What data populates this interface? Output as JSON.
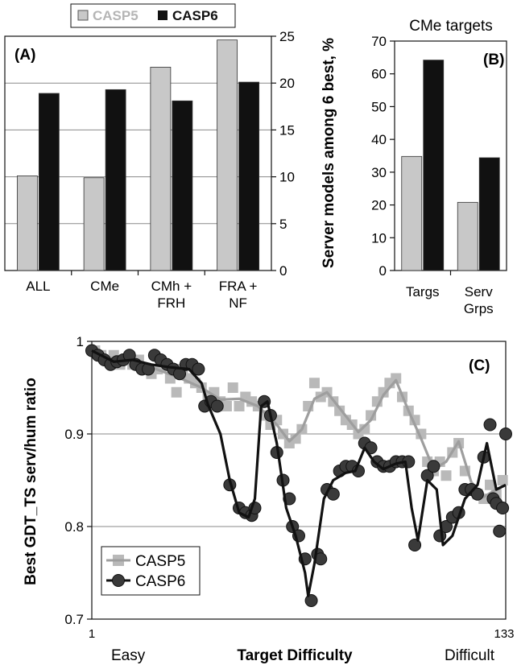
{
  "colors": {
    "casp5_bar": "#c8c8c8",
    "casp6_bar": "#111111",
    "casp5_line": "#9e9e9e",
    "casp5_marker": "#b9b9b9",
    "casp6_line": "#111111",
    "casp6_marker": "#3a3a3a",
    "gridline": "#8a8a8a"
  },
  "chart_data": [
    {
      "panel": "A",
      "panel_label": "(A)",
      "type": "bar",
      "title": "",
      "categories": [
        [
          "ALL"
        ],
        [
          "CMe"
        ],
        [
          "CMh +",
          "FRH"
        ],
        [
          "FRA +",
          "NF"
        ]
      ],
      "series": [
        {
          "name": "CASP5",
          "values": [
            10.1,
            9.9,
            21.7,
            24.6
          ]
        },
        {
          "name": "CASP6",
          "values": [
            18.9,
            19.3,
            18.1,
            20.1
          ]
        }
      ],
      "ylim": [
        0,
        25
      ],
      "yticks": [
        0,
        5,
        10,
        15,
        20,
        25
      ],
      "ytick_labels": [
        "0",
        "5",
        "10",
        "15",
        "20",
        "25"
      ],
      "y_axis_side": "right",
      "grid": true,
      "legend": [
        "CASP5",
        "CASP6"
      ],
      "legend_position": "top"
    },
    {
      "panel": "B",
      "panel_label": "(B)",
      "type": "bar",
      "title": "CMe targets",
      "ylabel": "Server models among 6 best, %",
      "categories": [
        [
          "Targs"
        ],
        [
          "Serv",
          "Grps"
        ]
      ],
      "series": [
        {
          "name": "CASP5",
          "values": [
            34.8,
            20.8
          ]
        },
        {
          "name": "CASP6",
          "values": [
            64.2,
            34.4
          ]
        }
      ],
      "ylim": [
        0,
        70
      ],
      "yticks": [
        0,
        10,
        20,
        30,
        40,
        50,
        60,
        70
      ],
      "ytick_labels": [
        "0",
        "10",
        "20",
        "30",
        "40",
        "50",
        "60",
        "70"
      ],
      "grid": false
    },
    {
      "panel": "C",
      "panel_label": "(C)",
      "type": "scatter",
      "ylabel": "Best GDT_TS serv/hum ratio",
      "xlabel": "Target Difficulty",
      "x_end_labels": {
        "left": "Easy",
        "right": "Difficult"
      },
      "xlim": [
        1,
        133
      ],
      "xticks": [
        1,
        133
      ],
      "xtick_labels": [
        "1",
        "133"
      ],
      "ylim": [
        0.7,
        1.0
      ],
      "yticks": [
        0.7,
        0.8,
        0.9,
        1.0
      ],
      "ytick_labels": [
        "0.7",
        "0.8",
        "0.9",
        "1"
      ],
      "grid": true,
      "legend": [
        "CASP5",
        "CASP6"
      ],
      "legend_position": "bottom-left",
      "series": [
        {
          "name": "CASP5",
          "points": [
            [
              2,
              0.99
            ],
            [
              4,
              0.985
            ],
            [
              6,
              0.98
            ],
            [
              8,
              0.985
            ],
            [
              10,
              0.975
            ],
            [
              12,
              0.98
            ],
            [
              14,
              0.975
            ],
            [
              16,
              0.98
            ],
            [
              18,
              0.97
            ],
            [
              20,
              0.965
            ],
            [
              22,
              0.97
            ],
            [
              24,
              0.975
            ],
            [
              26,
              0.96
            ],
            [
              28,
              0.945
            ],
            [
              30,
              0.97
            ],
            [
              32,
              0.96
            ],
            [
              34,
              0.955
            ],
            [
              36,
              0.95
            ],
            [
              38,
              0.94
            ],
            [
              40,
              0.945
            ],
            [
              42,
              0.935
            ],
            [
              44,
              0.93
            ],
            [
              46,
              0.95
            ],
            [
              48,
              0.93
            ],
            [
              50,
              0.94
            ],
            [
              52,
              0.935
            ],
            [
              54,
              0.93
            ],
            [
              56,
              0.92
            ],
            [
              58,
              0.91
            ],
            [
              60,
              0.915
            ],
            [
              62,
              0.9
            ],
            [
              64,
              0.89
            ],
            [
              66,
              0.895
            ],
            [
              68,
              0.905
            ],
            [
              70,
              0.93
            ],
            [
              72,
              0.955
            ],
            [
              74,
              0.94
            ],
            [
              76,
              0.945
            ],
            [
              78,
              0.935
            ],
            [
              80,
              0.925
            ],
            [
              82,
              0.915
            ],
            [
              84,
              0.91
            ],
            [
              86,
              0.9
            ],
            [
              88,
              0.905
            ],
            [
              90,
              0.92
            ],
            [
              92,
              0.935
            ],
            [
              94,
              0.945
            ],
            [
              96,
              0.955
            ],
            [
              98,
              0.96
            ],
            [
              100,
              0.94
            ],
            [
              102,
              0.925
            ],
            [
              104,
              0.915
            ],
            [
              106,
              0.9
            ],
            [
              108,
              0.87
            ],
            [
              110,
              0.86
            ],
            [
              112,
              0.87
            ],
            [
              114,
              0.855
            ],
            [
              116,
              0.88
            ],
            [
              118,
              0.89
            ],
            [
              120,
              0.86
            ],
            [
              122,
              0.84
            ],
            [
              124,
              0.835
            ],
            [
              126,
              0.83
            ],
            [
              128,
              0.845
            ],
            [
              130,
              0.835
            ],
            [
              132,
              0.85
            ]
          ],
          "trend": [
            [
              1,
              0.99
            ],
            [
              10,
              0.978
            ],
            [
              20,
              0.972
            ],
            [
              28,
              0.962
            ],
            [
              36,
              0.95
            ],
            [
              42,
              0.937
            ],
            [
              48,
              0.938
            ],
            [
              54,
              0.93
            ],
            [
              60,
              0.91
            ],
            [
              64,
              0.892
            ],
            [
              68,
              0.905
            ],
            [
              72,
              0.938
            ],
            [
              76,
              0.945
            ],
            [
              80,
              0.928
            ],
            [
              86,
              0.902
            ],
            [
              90,
              0.915
            ],
            [
              94,
              0.942
            ],
            [
              98,
              0.958
            ],
            [
              102,
              0.925
            ],
            [
              106,
              0.895
            ],
            [
              110,
              0.862
            ],
            [
              114,
              0.87
            ],
            [
              118,
              0.892
            ],
            [
              122,
              0.848
            ],
            [
              126,
              0.832
            ],
            [
              130,
              0.84
            ],
            [
              133,
              0.845
            ]
          ]
        },
        {
          "name": "CASP6",
          "points": [
            [
              1,
              0.99
            ],
            [
              3,
              0.985
            ],
            [
              5,
              0.98
            ],
            [
              7,
              0.975
            ],
            [
              9,
              0.978
            ],
            [
              11,
              0.98
            ],
            [
              13,
              0.985
            ],
            [
              15,
              0.975
            ],
            [
              17,
              0.97
            ],
            [
              19,
              0.97
            ],
            [
              21,
              0.985
            ],
            [
              23,
              0.98
            ],
            [
              25,
              0.975
            ],
            [
              27,
              0.97
            ],
            [
              29,
              0.965
            ],
            [
              31,
              0.975
            ],
            [
              33,
              0.975
            ],
            [
              35,
              0.97
            ],
            [
              37,
              0.93
            ],
            [
              39,
              0.935
            ],
            [
              41,
              0.93
            ],
            [
              45,
              0.845
            ],
            [
              48,
              0.82
            ],
            [
              50,
              0.815
            ],
            [
              52,
              0.812
            ],
            [
              53,
              0.82
            ],
            [
              56,
              0.935
            ],
            [
              58,
              0.92
            ],
            [
              60,
              0.88
            ],
            [
              62,
              0.85
            ],
            [
              64,
              0.83
            ],
            [
              65,
              0.8
            ],
            [
              67,
              0.79
            ],
            [
              69,
              0.765
            ],
            [
              71,
              0.72
            ],
            [
              73,
              0.77
            ],
            [
              74,
              0.765
            ],
            [
              76,
              0.84
            ],
            [
              78,
              0.835
            ],
            [
              80,
              0.86
            ],
            [
              82,
              0.865
            ],
            [
              84,
              0.865
            ],
            [
              86,
              0.86
            ],
            [
              88,
              0.89
            ],
            [
              90,
              0.885
            ],
            [
              92,
              0.87
            ],
            [
              94,
              0.865
            ],
            [
              96,
              0.865
            ],
            [
              98,
              0.87
            ],
            [
              100,
              0.87
            ],
            [
              102,
              0.87
            ],
            [
              104,
              0.78
            ],
            [
              108,
              0.855
            ],
            [
              110,
              0.865
            ],
            [
              112,
              0.79
            ],
            [
              114,
              0.8
            ],
            [
              116,
              0.81
            ],
            [
              118,
              0.815
            ],
            [
              120,
              0.84
            ],
            [
              122,
              0.84
            ],
            [
              124,
              0.835
            ],
            [
              126,
              0.875
            ],
            [
              128,
              0.91
            ],
            [
              129,
              0.83
            ],
            [
              130,
              0.825
            ],
            [
              131,
              0.795
            ],
            [
              132,
              0.82
            ],
            [
              133,
              0.9
            ]
          ],
          "trend": [
            [
              1,
              0.99
            ],
            [
              8,
              0.978
            ],
            [
              14,
              0.98
            ],
            [
              20,
              0.975
            ],
            [
              26,
              0.972
            ],
            [
              32,
              0.97
            ],
            [
              36,
              0.955
            ],
            [
              38,
              0.932
            ],
            [
              42,
              0.9
            ],
            [
              45,
              0.85
            ],
            [
              48,
              0.815
            ],
            [
              51,
              0.81
            ],
            [
              53,
              0.83
            ],
            [
              55,
              0.93
            ],
            [
              57,
              0.935
            ],
            [
              60,
              0.89
            ],
            [
              63,
              0.82
            ],
            [
              66,
              0.79
            ],
            [
              69,
              0.75
            ],
            [
              70,
              0.725
            ],
            [
              72,
              0.76
            ],
            [
              75,
              0.83
            ],
            [
              78,
              0.85
            ],
            [
              82,
              0.858
            ],
            [
              85,
              0.86
            ],
            [
              88,
              0.885
            ],
            [
              91,
              0.87
            ],
            [
              94,
              0.862
            ],
            [
              98,
              0.868
            ],
            [
              101,
              0.87
            ],
            [
              103,
              0.82
            ],
            [
              105,
              0.785
            ],
            [
              108,
              0.85
            ],
            [
              111,
              0.84
            ],
            [
              113,
              0.78
            ],
            [
              116,
              0.79
            ],
            [
              120,
              0.83
            ],
            [
              124,
              0.845
            ],
            [
              127,
              0.89
            ],
            [
              130,
              0.84
            ],
            [
              133,
              0.845
            ]
          ]
        }
      ]
    }
  ]
}
